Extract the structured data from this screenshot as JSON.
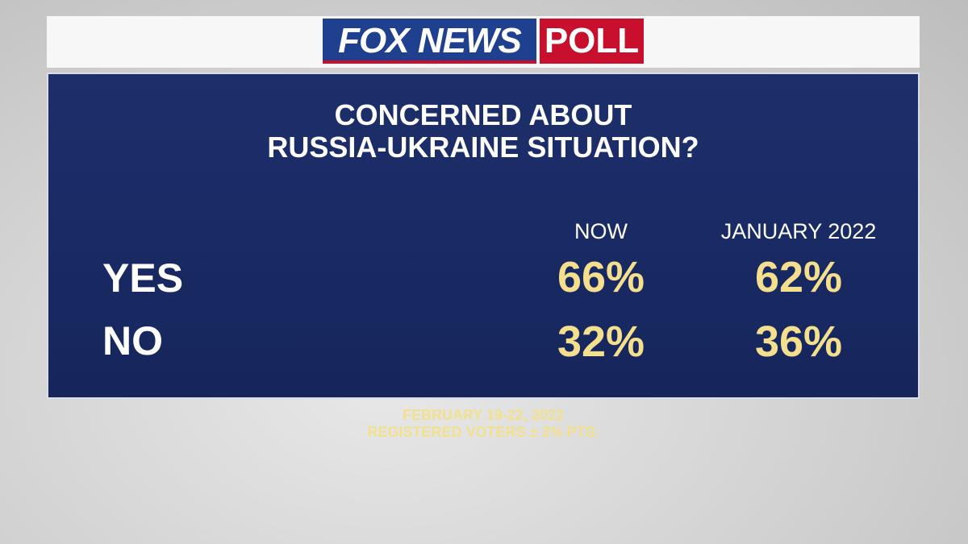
{
  "header": {
    "logo_brand": "FOX NEWS",
    "logo_poll": "POLL"
  },
  "title": [
    "CONCERNED ABOUT",
    "RUSSIA-UKRAINE SITUATION?"
  ],
  "table": {
    "columns": [
      "NOW",
      "JANUARY 2022"
    ],
    "rows": [
      {
        "label": "YES",
        "cells": [
          "66%",
          "62%"
        ]
      },
      {
        "label": "NO",
        "cells": [
          "32%",
          "36%"
        ]
      }
    ]
  },
  "footer": [
    "FEBRUARY 19-22, 2022",
    "REGISTERED VOTERS ± 3% PTS."
  ]
}
